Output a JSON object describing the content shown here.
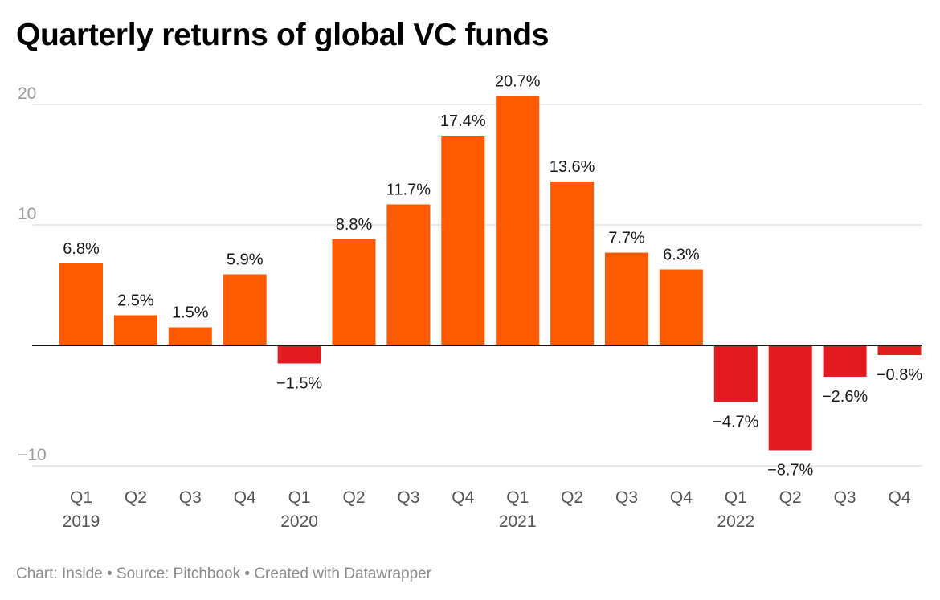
{
  "title": "Quarterly returns of global VC funds",
  "footer": "Chart: Inside • Source: Pitchbook • Created with Datawrapper",
  "chart_data": {
    "type": "bar",
    "title": "Quarterly returns of global VC funds",
    "xlabel": "",
    "ylabel": "",
    "ylim": [
      -10,
      20
    ],
    "yticks": [
      "20",
      "10",
      "−10"
    ],
    "ytick_values": [
      20,
      10,
      -10
    ],
    "grid": true,
    "categories": [
      "Q1 2019",
      "Q2 2019",
      "Q3 2019",
      "Q4 2019",
      "Q1 2020",
      "Q2 2020",
      "Q3 2020",
      "Q4 2020",
      "Q1 2021",
      "Q2 2021",
      "Q3 2021",
      "Q4 2021",
      "Q1 2022",
      "Q2 2022",
      "Q3 2022",
      "Q4 2022"
    ],
    "category_labels": [
      "Q1",
      "Q2",
      "Q3",
      "Q4",
      "Q1",
      "Q2",
      "Q3",
      "Q4",
      "Q1",
      "Q2",
      "Q3",
      "Q4",
      "Q1",
      "Q2",
      "Q3",
      "Q4"
    ],
    "year_labels": [
      "2019",
      "",
      "",
      "",
      "2020",
      "",
      "",
      "",
      "2021",
      "",
      "",
      "",
      "2022",
      "",
      "",
      ""
    ],
    "values": [
      6.8,
      2.5,
      1.5,
      5.9,
      -1.5,
      8.8,
      11.7,
      17.4,
      20.7,
      13.6,
      7.7,
      6.3,
      -4.7,
      -8.7,
      -2.6,
      -0.8
    ],
    "value_labels": [
      "6.8%",
      "2.5%",
      "1.5%",
      "5.9%",
      "−1.5%",
      "8.8%",
      "11.7%",
      "17.4%",
      "20.7%",
      "13.6%",
      "7.7%",
      "6.3%",
      "−4.7%",
      "−8.7%",
      "−2.6%",
      "−0.8%"
    ],
    "colors": {
      "positive": "#ff5a00",
      "negative": "#e11b1f",
      "grid": "#e3e3e3",
      "zero_line": "#1a1a1a"
    }
  }
}
